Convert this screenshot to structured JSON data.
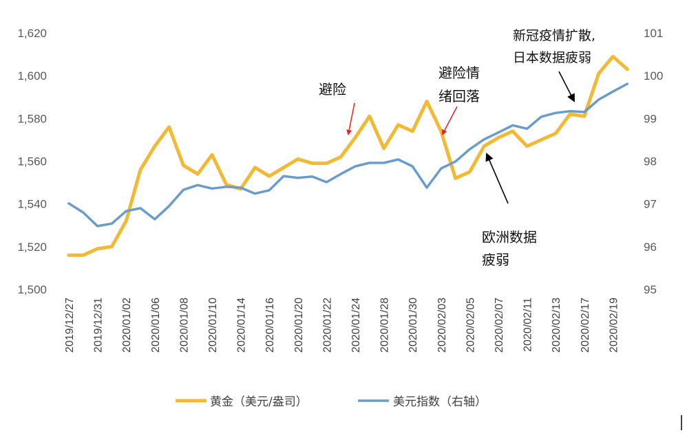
{
  "chart_data": {
    "type": "line",
    "title": "",
    "x": [
      "2019/12/27",
      "2019/12/30",
      "2019/12/31",
      "2020/01/01",
      "2020/01/02",
      "2020/01/03",
      "2020/01/06",
      "2020/01/07",
      "2020/01/08",
      "2020/01/09",
      "2020/01/10",
      "2020/01/13",
      "2020/01/14",
      "2020/01/15",
      "2020/01/16",
      "2020/01/17",
      "2020/01/20",
      "2020/01/21",
      "2020/01/22",
      "2020/01/23",
      "2020/01/24",
      "2020/01/27",
      "2020/01/28",
      "2020/01/29",
      "2020/01/30",
      "2020/01/31",
      "2020/02/03",
      "2020/02/04",
      "2020/02/05",
      "2020/02/06",
      "2020/02/07",
      "2020/02/10",
      "2020/02/11",
      "2020/02/12",
      "2020/02/13",
      "2020/02/14",
      "2020/02/17",
      "2020/02/18",
      "2020/02/19",
      "2020/02/20"
    ],
    "x_tick_labels": [
      "2019/12/27",
      "2019/12/31",
      "2020/01/02",
      "2020/01/06",
      "2020/01/08",
      "2020/01/10",
      "2020/01/14",
      "2020/01/16",
      "2020/01/20",
      "2020/01/22",
      "2020/01/24",
      "2020/01/28",
      "2020/01/30",
      "2020/02/03",
      "2020/02/05",
      "2020/02/07",
      "2020/02/11",
      "2020/02/13",
      "2020/02/17",
      "2020/02/19"
    ],
    "y_left": {
      "range": [
        1500,
        1620
      ],
      "ticks": [
        "1,500",
        "1,520",
        "1,540",
        "1,560",
        "1,580",
        "1,600",
        "1,620"
      ]
    },
    "y_right": {
      "range": [
        95,
        101
      ],
      "ticks": [
        "95",
        "96",
        "97",
        "98",
        "99",
        "100",
        "101"
      ]
    },
    "grid": false,
    "legend_position": "bottom",
    "series": [
      {
        "name": "黄金（美元/盎司）",
        "axis": "left",
        "color": "#F2B935",
        "values": [
          1516,
          1516,
          1519,
          1520,
          1532,
          1556,
          1567,
          1576,
          1558,
          1554,
          1563,
          1549,
          1547,
          1557,
          1553,
          1557,
          1561,
          1559,
          1559,
          1562,
          1571,
          1581,
          1566,
          1577,
          1574,
          1588,
          1574,
          1552,
          1555,
          1567,
          1571,
          1574,
          1567,
          1570,
          1573,
          1582,
          1581,
          1601,
          1609,
          1603
        ]
      },
      {
        "name": "美元指数（右轴）",
        "axis": "right",
        "color": "#6A9BCD",
        "values": [
          97.01,
          96.8,
          96.48,
          96.54,
          96.83,
          96.9,
          96.64,
          96.95,
          97.33,
          97.44,
          97.36,
          97.4,
          97.38,
          97.24,
          97.32,
          97.65,
          97.61,
          97.64,
          97.51,
          97.7,
          97.88,
          97.96,
          97.96,
          98.04,
          97.88,
          97.38,
          97.83,
          97.99,
          98.28,
          98.51,
          98.67,
          98.84,
          98.76,
          99.04,
          99.13,
          99.17,
          99.15,
          99.44,
          99.63,
          99.81
        ]
      }
    ],
    "annotations": [
      {
        "lines": [
          "避险"
        ],
        "arrow_color": "#E8201F"
      },
      {
        "lines": [
          "避险情",
          "绪回落"
        ],
        "arrow_color": "#E8201F"
      },
      {
        "lines": [
          "新冠疫情扩散,",
          "日本数据疲弱"
        ],
        "arrow_color": "#000000"
      },
      {
        "lines": [
          "欧洲数据",
          "疲弱"
        ],
        "arrow_color": "#000000"
      }
    ]
  }
}
